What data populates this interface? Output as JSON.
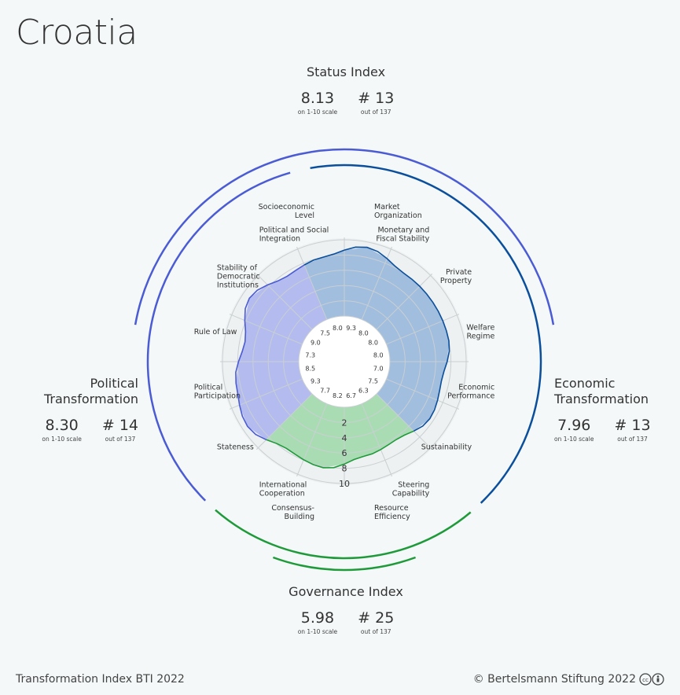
{
  "country": "Croatia",
  "status": {
    "name": "Status Index",
    "score": "8.13",
    "score_note": "on 1-10 scale",
    "rank": "# 13",
    "rank_note": "out of 137"
  },
  "political": {
    "name_l1": "Political",
    "name_l2": "Transformation",
    "score": "8.30",
    "score_note": "on 1-10 scale",
    "rank": "# 14",
    "rank_note": "out of 137"
  },
  "economic": {
    "name_l1": "Economic",
    "name_l2": "Transformation",
    "score": "7.96",
    "score_note": "on 1-10 scale",
    "rank": "# 13",
    "rank_note": "out of 137"
  },
  "governance": {
    "name": "Governance Index",
    "score": "5.98",
    "score_note": "on 1-10 scale",
    "rank": "# 25",
    "rank_note": "out of 137"
  },
  "footer": {
    "left": "Transformation Index BTI 2022",
    "right": "© Bertelsmann Stiftung 2022"
  },
  "colors": {
    "political": "#4a5bd4",
    "economic": "#0b4f9c",
    "governance": "#1f9a3a",
    "political_fill": "#a9b3ee",
    "economic_fill": "#93b5dc",
    "governance_fill": "#9ed8a9"
  },
  "chart_data": {
    "type": "radar",
    "scale_ticks": [
      "2",
      "4",
      "6",
      "8",
      "10"
    ],
    "range": [
      0,
      10
    ],
    "criteria": [
      {
        "label": [
          "Market",
          "Organization"
        ],
        "value": 9.3,
        "group": "economic"
      },
      {
        "label": [
          "Monetary and",
          "Fiscal Stability"
        ],
        "value": 8.0,
        "group": "economic"
      },
      {
        "label": [
          "Private",
          "Property"
        ],
        "value": 8.0,
        "group": "economic"
      },
      {
        "label": [
          "Welfare",
          "Regime"
        ],
        "value": 8.0,
        "group": "economic"
      },
      {
        "label": [
          "Economic",
          "Performance"
        ],
        "value": 7.0,
        "group": "economic"
      },
      {
        "label": [
          "Sustainability"
        ],
        "value": 7.5,
        "group": "economic"
      },
      {
        "label": [
          "Steering",
          "Capability"
        ],
        "value": 6.3,
        "group": "governance"
      },
      {
        "label": [
          "Resource",
          "Efficiency"
        ],
        "value": 6.7,
        "group": "governance"
      },
      {
        "label": [
          "Consensus-",
          "Building"
        ],
        "value": 8.2,
        "group": "governance"
      },
      {
        "label": [
          "International",
          "Cooperation"
        ],
        "value": 7.7,
        "group": "governance"
      },
      {
        "label": [
          "Stateness"
        ],
        "value": 9.3,
        "group": "political"
      },
      {
        "label": [
          "Political",
          "Participation"
        ],
        "value": 8.5,
        "group": "political"
      },
      {
        "label": [
          "Rule of Law"
        ],
        "value": 7.3,
        "group": "political"
      },
      {
        "label": [
          "Stability of",
          "Democratic",
          "Institutions"
        ],
        "value": 9.0,
        "group": "political"
      },
      {
        "label": [
          "Political and Social",
          "Integration"
        ],
        "value": 7.5,
        "group": "political"
      },
      {
        "label": [
          "Socioeconomic",
          "Level"
        ],
        "value": 8.0,
        "group": "economic"
      }
    ]
  }
}
